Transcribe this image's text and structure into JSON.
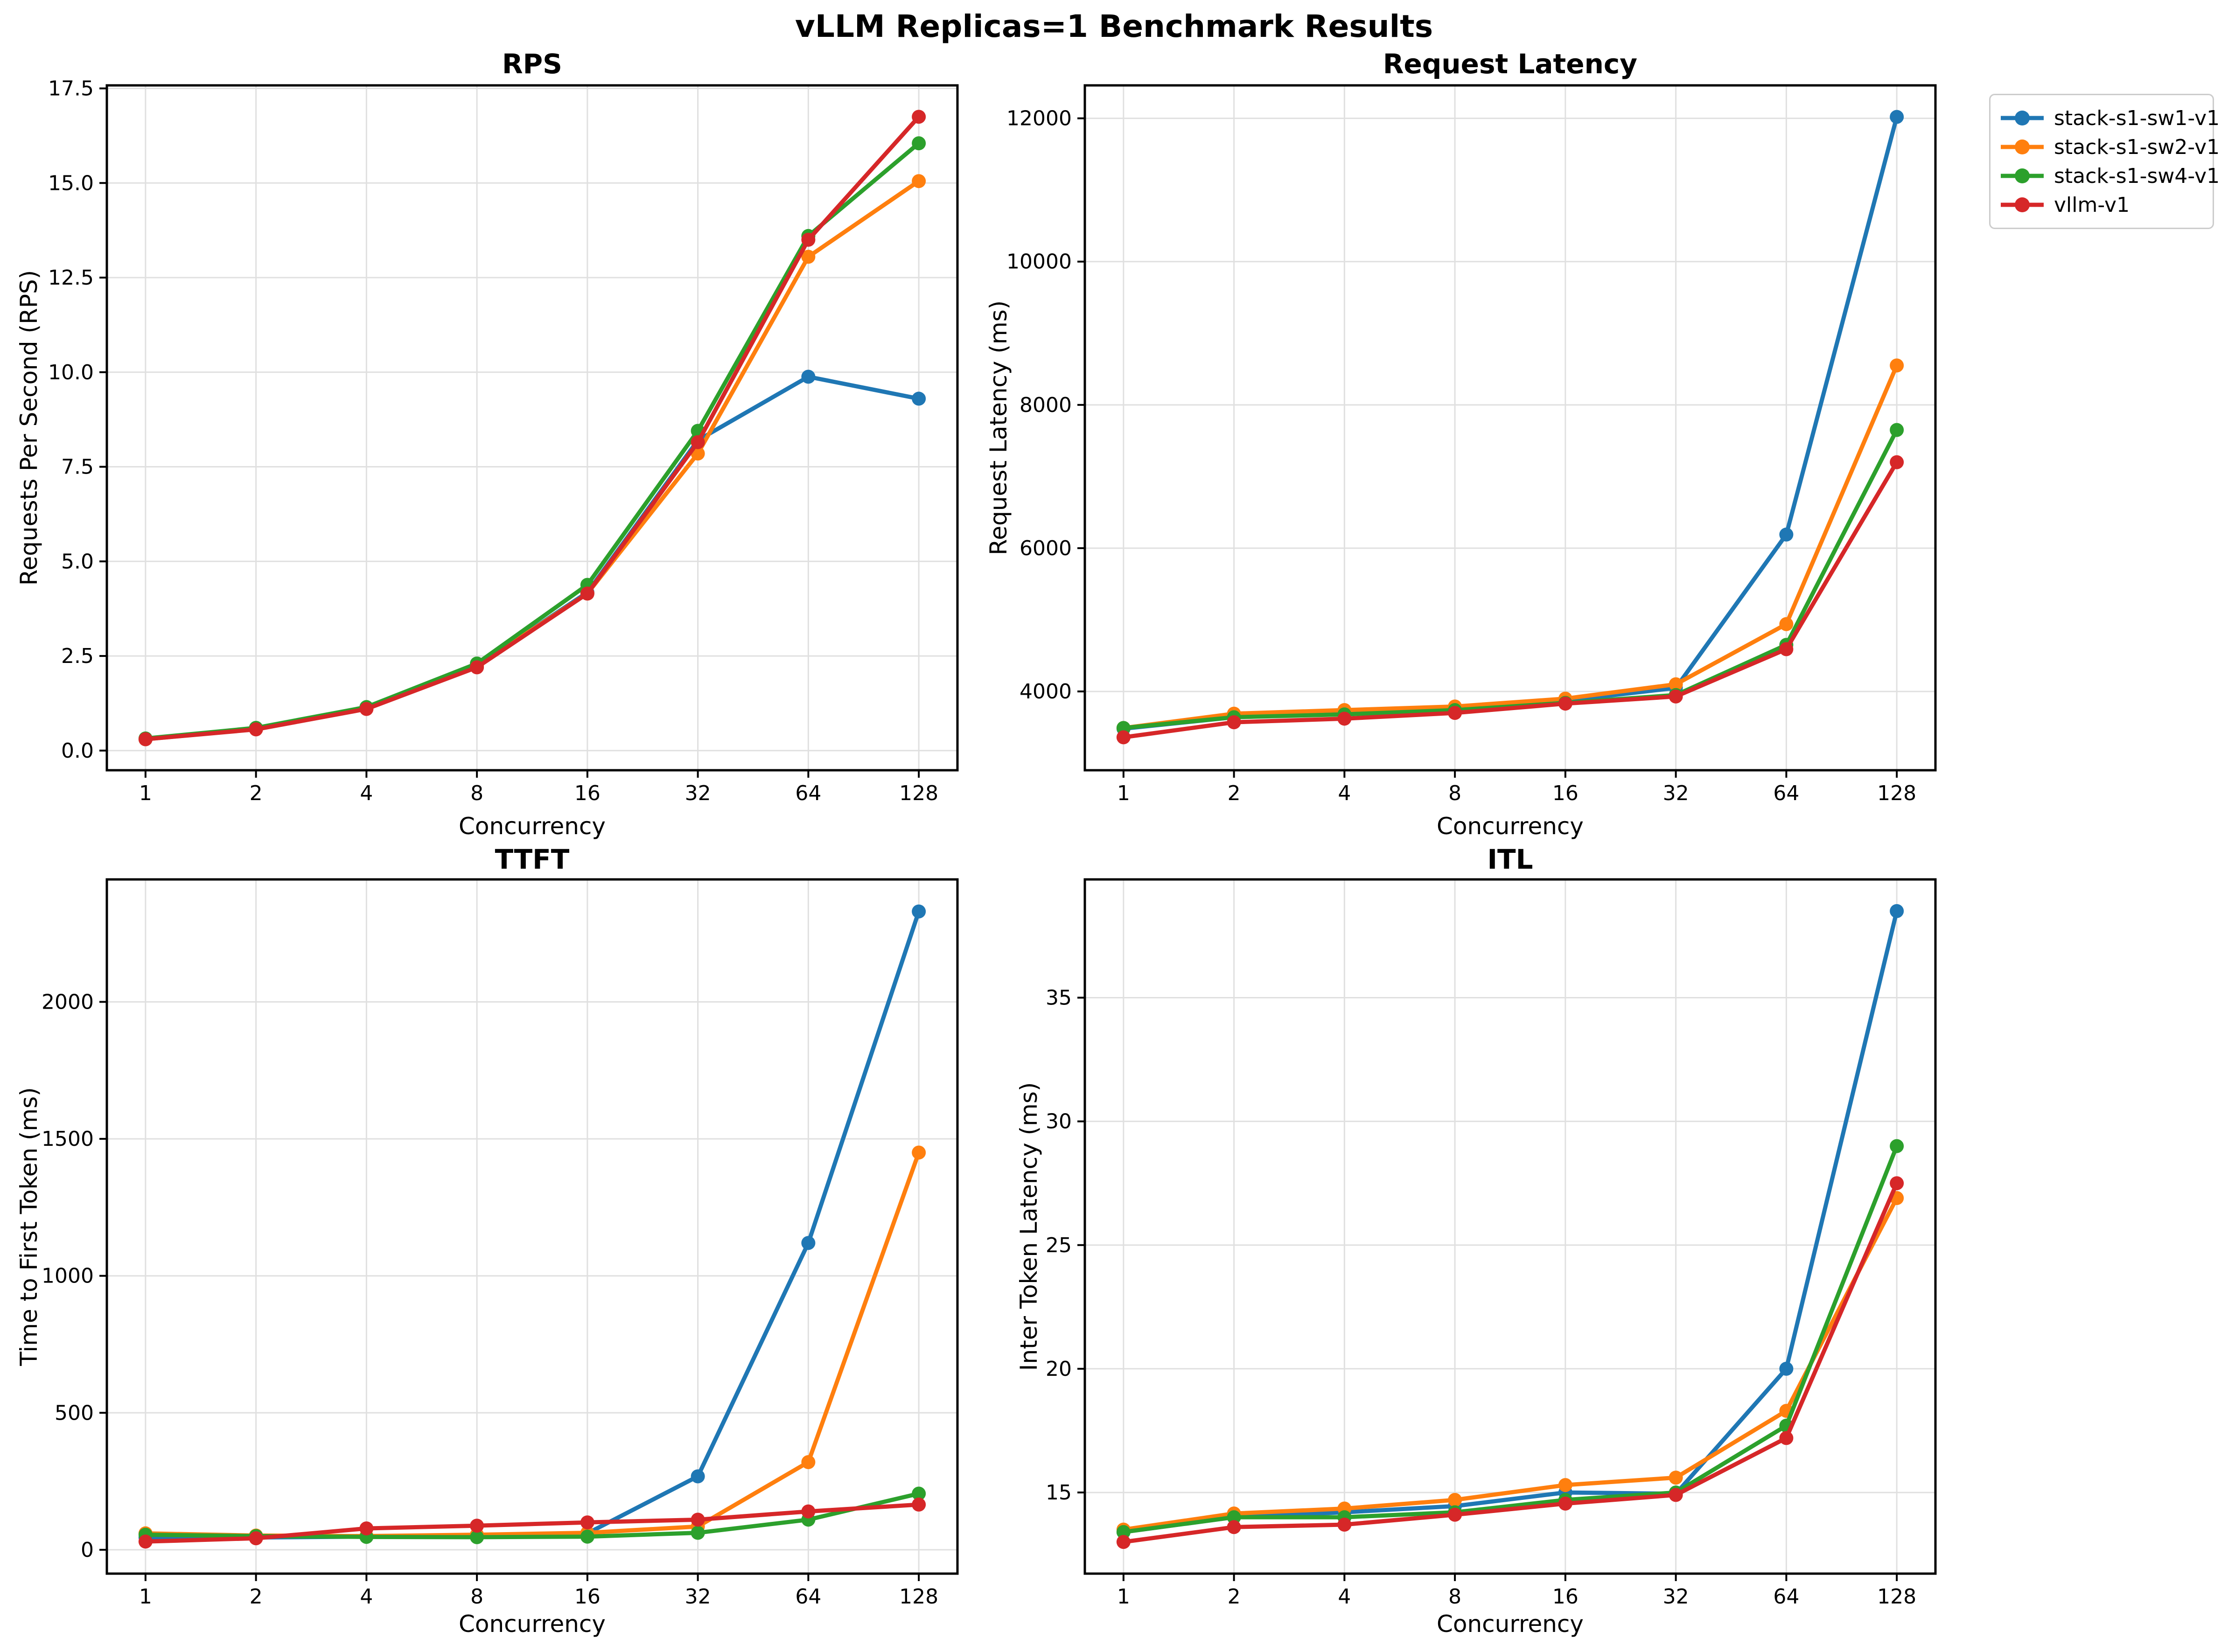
{
  "figure": {
    "title": "vLLM Replicas=1 Benchmark Results"
  },
  "legend": {
    "items": [
      {
        "label": "stack-s1-sw1-v1",
        "color": "#1f77b4"
      },
      {
        "label": "stack-s1-sw2-v1",
        "color": "#ff7f0e"
      },
      {
        "label": "stack-s1-sw4-v1",
        "color": "#2ca02c"
      },
      {
        "label": "vllm-v1",
        "color": "#d62728"
      }
    ]
  },
  "chart_data": [
    {
      "type": "line",
      "title": "RPS",
      "xlabel": "Concurrency",
      "ylabel": "Requests Per Second (RPS)",
      "categories": [
        "1",
        "2",
        "4",
        "8",
        "16",
        "32",
        "64",
        "128"
      ],
      "yticks": [
        0.0,
        2.5,
        5.0,
        7.5,
        10.0,
        12.5,
        15.0,
        17.5
      ],
      "ytick_labels": [
        "0.0",
        "2.5",
        "5.0",
        "7.5",
        "10.0",
        "12.5",
        "15.0",
        "17.5"
      ],
      "ylim": [
        -0.52,
        17.58
      ],
      "grid": true,
      "legend_position": "outside-top-right",
      "series": [
        {
          "name": "stack-s1-sw1-v1",
          "color": "#1f77b4",
          "values": [
            0.3,
            0.57,
            1.12,
            2.24,
            4.18,
            8.2,
            9.88,
            9.3
          ]
        },
        {
          "name": "stack-s1-sw2-v1",
          "color": "#ff7f0e",
          "values": [
            0.3,
            0.57,
            1.12,
            2.24,
            4.15,
            7.85,
            13.05,
            15.05
          ]
        },
        {
          "name": "stack-s1-sw4-v1",
          "color": "#2ca02c",
          "values": [
            0.32,
            0.6,
            1.15,
            2.3,
            4.38,
            8.45,
            13.6,
            16.05
          ]
        },
        {
          "name": "vllm-v1",
          "color": "#d62728",
          "values": [
            0.3,
            0.56,
            1.1,
            2.2,
            4.15,
            8.15,
            13.5,
            16.75
          ]
        }
      ]
    },
    {
      "type": "line",
      "title": "Request Latency",
      "xlabel": "Concurrency",
      "ylabel": "Request Latency (ms)",
      "categories": [
        "1",
        "2",
        "4",
        "8",
        "16",
        "32",
        "64",
        "128"
      ],
      "yticks": [
        4000,
        6000,
        8000,
        10000,
        12000
      ],
      "ytick_labels": [
        "4000",
        "6000",
        "8000",
        "10000",
        "12000"
      ],
      "ylim": [
        2900,
        12460
      ],
      "grid": true,
      "series": [
        {
          "name": "stack-s1-sw1-v1",
          "color": "#1f77b4",
          "values": [
            3480,
            3640,
            3690,
            3750,
            3870,
            4050,
            6190,
            12020
          ]
        },
        {
          "name": "stack-s1-sw2-v1",
          "color": "#ff7f0e",
          "values": [
            3490,
            3690,
            3740,
            3790,
            3900,
            4100,
            4940,
            8550
          ]
        },
        {
          "name": "stack-s1-sw4-v1",
          "color": "#2ca02c",
          "values": [
            3490,
            3640,
            3680,
            3740,
            3840,
            3950,
            4650,
            7650
          ]
        },
        {
          "name": "vllm-v1",
          "color": "#d62728",
          "values": [
            3360,
            3570,
            3620,
            3700,
            3830,
            3930,
            4590,
            7200
          ]
        }
      ]
    },
    {
      "type": "line",
      "title": "TTFT",
      "xlabel": "Concurrency",
      "ylabel": "Time to First Token (ms)",
      "categories": [
        "1",
        "2",
        "4",
        "8",
        "16",
        "32",
        "64",
        "128"
      ],
      "yticks": [
        0,
        500,
        1000,
        1500,
        2000
      ],
      "ytick_labels": [
        "0",
        "500",
        "1000",
        "1500",
        "2000"
      ],
      "ylim": [
        -87,
        2447
      ],
      "grid": true,
      "series": [
        {
          "name": "stack-s1-sw1-v1",
          "color": "#1f77b4",
          "values": [
            45,
            45,
            48,
            50,
            60,
            268,
            1120,
            2330
          ]
        },
        {
          "name": "stack-s1-sw2-v1",
          "color": "#ff7f0e",
          "values": [
            60,
            52,
            50,
            55,
            62,
            85,
            320,
            1450
          ]
        },
        {
          "name": "stack-s1-sw4-v1",
          "color": "#2ca02c",
          "values": [
            55,
            50,
            47,
            46,
            48,
            62,
            110,
            205
          ]
        },
        {
          "name": "vllm-v1",
          "color": "#d62728",
          "values": [
            30,
            42,
            78,
            88,
            100,
            110,
            140,
            165
          ]
        }
      ]
    },
    {
      "type": "line",
      "title": "ITL",
      "xlabel": "Concurrency",
      "ylabel": "Inter Token Latency (ms)",
      "categories": [
        "1",
        "2",
        "4",
        "8",
        "16",
        "32",
        "64",
        "128"
      ],
      "yticks": [
        15,
        20,
        25,
        30,
        35
      ],
      "ytick_labels": [
        "15",
        "20",
        "25",
        "30",
        "35"
      ],
      "ylim": [
        11.72,
        39.78
      ],
      "grid": true,
      "series": [
        {
          "name": "stack-s1-sw1-v1",
          "color": "#1f77b4",
          "values": [
            13.4,
            14.0,
            14.2,
            14.45,
            15.0,
            14.95,
            20.0,
            38.5
          ]
        },
        {
          "name": "stack-s1-sw2-v1",
          "color": "#ff7f0e",
          "values": [
            13.5,
            14.15,
            14.35,
            14.7,
            15.3,
            15.6,
            18.3,
            26.9
          ]
        },
        {
          "name": "stack-s1-sw4-v1",
          "color": "#2ca02c",
          "values": [
            13.4,
            14.0,
            14.0,
            14.2,
            14.7,
            15.0,
            17.7,
            29.0
          ]
        },
        {
          "name": "vllm-v1",
          "color": "#d62728",
          "values": [
            13.0,
            13.6,
            13.7,
            14.1,
            14.55,
            14.9,
            17.2,
            27.5
          ]
        }
      ]
    }
  ]
}
